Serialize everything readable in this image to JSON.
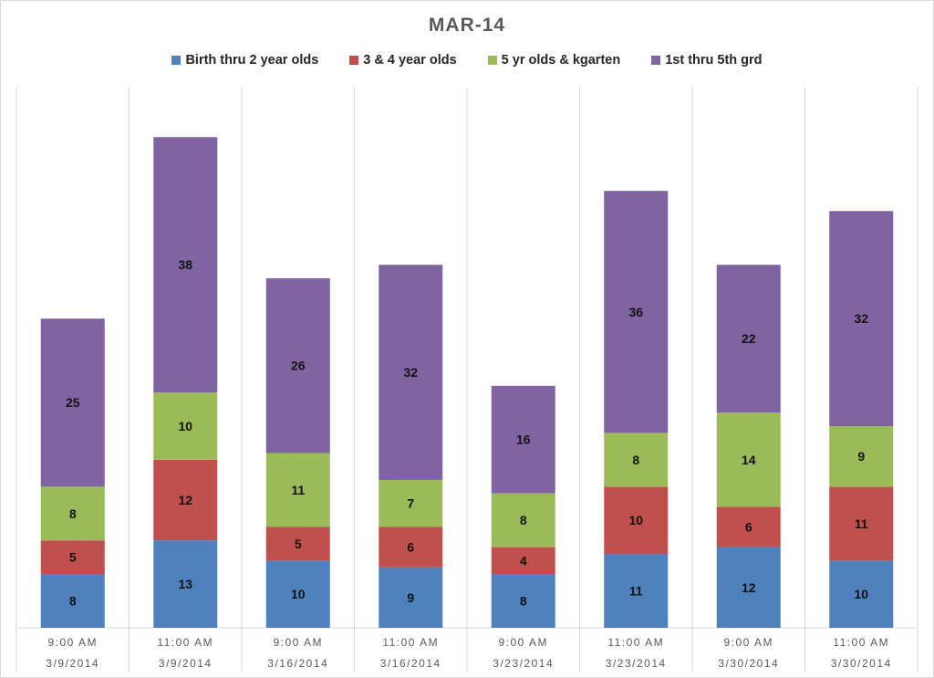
{
  "chart_data": {
    "type": "bar",
    "stacked": true,
    "title": "MAR-14",
    "categories": [
      [
        "9:00 AM",
        "3/9/2014"
      ],
      [
        "11:00 AM",
        "3/9/2014"
      ],
      [
        "9:00 AM",
        "3/16/2014"
      ],
      [
        "11:00 AM",
        "3/16/2014"
      ],
      [
        "9:00 AM",
        "3/23/2014"
      ],
      [
        "11:00 AM",
        "3/23/2014"
      ],
      [
        "9:00 AM",
        "3/30/2014"
      ],
      [
        "11:00 AM",
        "3/30/2014"
      ]
    ],
    "series": [
      {
        "name": "Birth thru 2 year olds",
        "color": "#4f81bd",
        "values": [
          8,
          13,
          10,
          9,
          8,
          11,
          12,
          10
        ]
      },
      {
        "name": "3 & 4 year olds",
        "color": "#c0504d",
        "values": [
          5,
          12,
          5,
          6,
          4,
          10,
          6,
          11
        ]
      },
      {
        "name": "5 yr olds & kgarten",
        "color": "#9bbb59",
        "values": [
          8,
          10,
          11,
          7,
          8,
          8,
          14,
          9
        ]
      },
      {
        "name": "1st thru  5th grd",
        "color": "#8064a2",
        "values": [
          25,
          38,
          26,
          32,
          16,
          36,
          22,
          32
        ]
      }
    ],
    "ylim": [
      0,
      80.5
    ],
    "data_labels": true,
    "legend": "top",
    "grid": "vertical category separators"
  }
}
